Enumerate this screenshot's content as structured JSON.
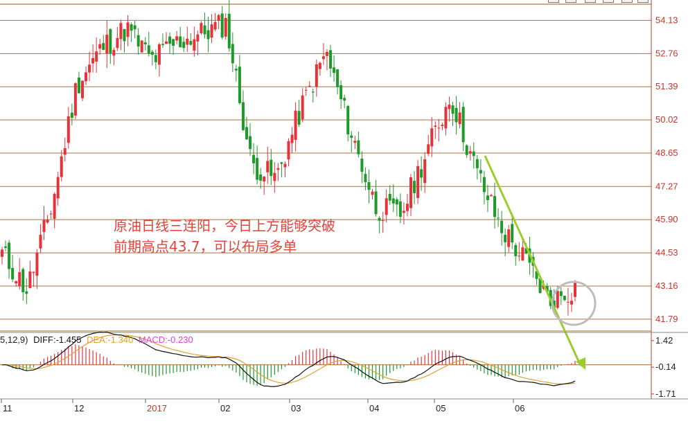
{
  "chart_data": [
    {
      "type": "candlestick",
      "price_axis": {
        "tick_labels": [
          "54.13",
          "52.76",
          "51.39",
          "50.02",
          "48.65",
          "47.27",
          "45.90",
          "44.53",
          "43.16",
          "41.79"
        ],
        "range": [
          41.3,
          54.8
        ]
      },
      "x_tick_labels": [
        "11",
        "12",
        "2017",
        "02",
        "03",
        "04",
        "05",
        "06"
      ],
      "annotation": {
        "line1": "原油日线三连阳，今日上方能够突破",
        "line2": "前期高点43.7，可以布局多单"
      },
      "up_color": "#e8323a",
      "down_color": "#1d9a2a",
      "trend_arrow_color": "#9ccc2c",
      "approx_close_path": [
        {
          "period": "11",
          "close": 44.5
        },
        {
          "period": "11",
          "close": 43.0
        },
        {
          "period": "11",
          "close": 46.5
        },
        {
          "period": "12",
          "close": 51.5
        },
        {
          "period": "12",
          "close": 53.0
        },
        {
          "period": "2017",
          "close": 53.8
        },
        {
          "period": "2017",
          "close": 52.5
        },
        {
          "period": "02",
          "close": 53.2
        },
        {
          "period": "02",
          "close": 53.6
        },
        {
          "period": "03",
          "close": 54.0
        },
        {
          "period": "03",
          "close": 48.2
        },
        {
          "period": "03",
          "close": 47.6
        },
        {
          "period": "04",
          "close": 50.5
        },
        {
          "period": "04",
          "close": 52.8
        },
        {
          "period": "04",
          "close": 49.5
        },
        {
          "period": "05",
          "close": 46.4
        },
        {
          "period": "05",
          "close": 46.1
        },
        {
          "period": "05",
          "close": 48.6
        },
        {
          "period": "05",
          "close": 51.0
        },
        {
          "period": "06",
          "close": 48.0
        },
        {
          "period": "06",
          "close": 45.6
        },
        {
          "period": "06",
          "close": 44.2
        },
        {
          "period": "06",
          "close": 42.5
        },
        {
          "period": "06",
          "close": 43.1
        }
      ]
    },
    {
      "type": "macd",
      "legend": {
        "params": "5,12,9)",
        "diff": "DIFF:-1.455",
        "dea": "DEA:-1.340",
        "macd": "MACD:-0.230"
      },
      "axis": {
        "tick_labels": [
          "1.42",
          "-0.14",
          "-1.71"
        ],
        "range": [
          -2.0,
          1.9
        ]
      },
      "colors": {
        "diff": "#111111",
        "dea": "#e0a030",
        "macd": "#e040e0",
        "hist_pos": "#e8323a",
        "hist_neg": "#1d9a2a"
      }
    }
  ]
}
